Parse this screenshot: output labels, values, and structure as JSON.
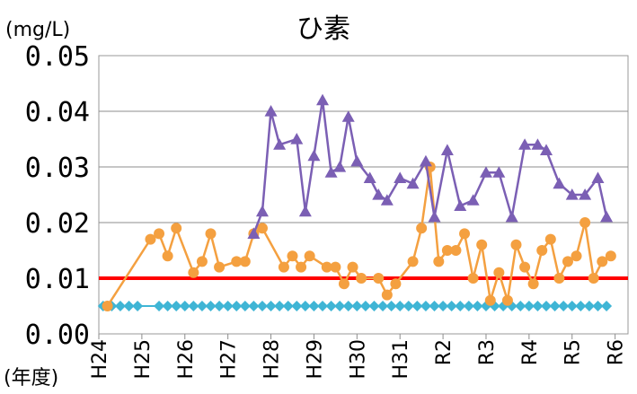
{
  "chart_data": {
    "type": "line",
    "title": "ひ素",
    "unit_label": "(mg/L)",
    "xlabel": "(年度)",
    "ylim": [
      0,
      0.05
    ],
    "y_ticks": [
      "0.00",
      "0.01",
      "0.02",
      "0.03",
      "0.04",
      "0.05"
    ],
    "x_ticks": [
      "H24",
      "H25",
      "H26",
      "H27",
      "H28",
      "H29",
      "H30",
      "H31",
      "R2",
      "R3",
      "R4",
      "R5",
      "R6"
    ],
    "x_range": [
      0,
      12.3
    ],
    "grid": true,
    "legend": "none",
    "reference_line": {
      "value": 0.01,
      "color": "#ff0000"
    },
    "series": [
      {
        "color": "#7b5fb4",
        "marker": "triangle",
        "x": [
          3.6,
          3.8,
          4.0,
          4.2,
          4.6,
          4.8,
          5.0,
          5.2,
          5.4,
          5.6,
          5.8,
          6.0,
          6.3,
          6.5,
          6.7,
          7.0,
          7.3,
          7.6,
          7.8,
          8.1,
          8.4,
          8.7,
          9.0,
          9.3,
          9.6,
          9.9,
          10.2,
          10.4,
          10.7,
          11.0,
          11.3,
          11.6,
          11.8
        ],
        "values": [
          0.018,
          0.022,
          0.04,
          0.034,
          0.035,
          0.022,
          0.032,
          0.042,
          0.029,
          0.03,
          0.039,
          0.031,
          0.028,
          0.025,
          0.024,
          0.028,
          0.027,
          0.031,
          0.021,
          0.033,
          0.023,
          0.024,
          0.029,
          0.029,
          0.021,
          0.034,
          0.034,
          0.033,
          0.027,
          0.025,
          0.025,
          0.028,
          0.021
        ]
      },
      {
        "color": "#f4a040",
        "marker": "circle",
        "x": [
          0.2,
          1.2,
          1.4,
          1.6,
          1.8,
          2.2,
          2.4,
          2.6,
          2.8,
          3.2,
          3.4,
          3.6,
          3.8,
          4.3,
          4.5,
          4.7,
          4.9,
          5.3,
          5.5,
          5.7,
          5.9,
          6.1,
          6.5,
          6.7,
          6.9,
          7.3,
          7.5,
          7.7,
          7.9,
          8.1,
          8.3,
          8.5,
          8.7,
          8.9,
          9.1,
          9.3,
          9.5,
          9.7,
          9.9,
          10.1,
          10.3,
          10.5,
          10.7,
          10.9,
          11.1,
          11.3,
          11.5,
          11.7,
          11.9
        ],
        "values": [
          0.005,
          0.017,
          0.018,
          0.014,
          0.019,
          0.011,
          0.013,
          0.018,
          0.012,
          0.013,
          0.013,
          0.018,
          0.019,
          0.012,
          0.014,
          0.012,
          0.014,
          0.012,
          0.012,
          0.009,
          0.012,
          0.01,
          0.01,
          0.007,
          0.009,
          0.013,
          0.019,
          0.03,
          0.013,
          0.015,
          0.015,
          0.018,
          0.01,
          0.016,
          0.006,
          0.011,
          0.006,
          0.016,
          0.012,
          0.009,
          0.015,
          0.017,
          0.01,
          0.013,
          0.014,
          0.02,
          0.01,
          0.013,
          0.014
        ]
      },
      {
        "color": "#3fb5d5",
        "marker": "diamond",
        "x": [
          0.1,
          0.3,
          0.5,
          0.7,
          0.9,
          1.4,
          1.6,
          1.8,
          2.0,
          2.2,
          2.4,
          2.6,
          2.8,
          3.0,
          3.2,
          3.4,
          3.6,
          3.8,
          4.0,
          4.2,
          4.4,
          4.6,
          4.8,
          5.0,
          5.2,
          5.4,
          5.6,
          5.8,
          6.0,
          6.2,
          6.4,
          6.6,
          6.8,
          7.0,
          7.2,
          7.4,
          7.6,
          7.8,
          8.0,
          8.2,
          8.4,
          8.6,
          8.8,
          9.0,
          9.2,
          9.4,
          9.6,
          9.8,
          10.0,
          10.2,
          10.4,
          10.6,
          10.8,
          11.0,
          11.2,
          11.4,
          11.6,
          11.8
        ],
        "values": [
          0.005,
          0.005,
          0.005,
          0.005,
          0.005,
          0.005,
          0.005,
          0.005,
          0.005,
          0.005,
          0.005,
          0.005,
          0.005,
          0.005,
          0.005,
          0.005,
          0.005,
          0.005,
          0.005,
          0.005,
          0.005,
          0.005,
          0.005,
          0.005,
          0.005,
          0.005,
          0.005,
          0.005,
          0.005,
          0.005,
          0.005,
          0.005,
          0.005,
          0.005,
          0.005,
          0.005,
          0.005,
          0.005,
          0.005,
          0.005,
          0.005,
          0.005,
          0.005,
          0.005,
          0.005,
          0.005,
          0.005,
          0.005,
          0.005,
          0.005,
          0.005,
          0.005,
          0.005,
          0.005,
          0.005,
          0.005,
          0.005,
          0.005
        ]
      }
    ]
  }
}
